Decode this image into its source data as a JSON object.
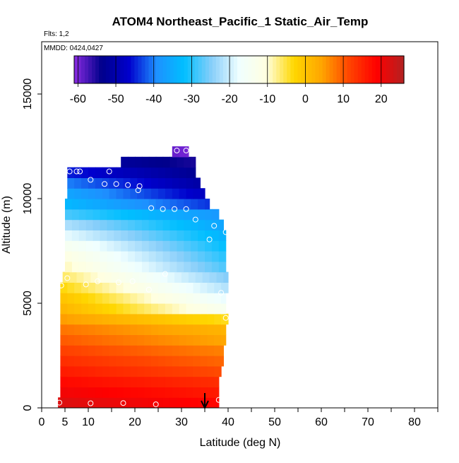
{
  "title": "ATOM4 Northeast_Pacific_1 Static_Air_Temp",
  "flights_text": "Flts: 1,2",
  "dates_text": "MMDD: 0424,0427",
  "chart_data": {
    "type": "heatmap",
    "xlabel": "Latitude (deg N)",
    "ylabel": "Altitude (m)",
    "xlim": [
      0,
      85
    ],
    "ylim": [
      0,
      17500
    ],
    "x_ticks": [
      0,
      5,
      10,
      20,
      30,
      40,
      50,
      60,
      70,
      80
    ],
    "y_ticks": [
      0,
      5000,
      10000,
      15000
    ],
    "colorbar": {
      "range": [
        -61,
        26
      ],
      "ticks": [
        -60,
        -50,
        -40,
        -30,
        -20,
        -10,
        0,
        10,
        20
      ],
      "colors": [
        "#8a2be2",
        "#00008b",
        "#0000cd",
        "#1e90ff",
        "#00bfff",
        "#87cefa",
        "#f0ffff",
        "#ffffe0",
        "#ffd700",
        "#ffa500",
        "#ff4500",
        "#ff0000",
        "#b22222"
      ]
    },
    "arrow_latitude": 35,
    "bins": [
      {
        "alt_min": 0,
        "alt_max": 500,
        "lat_min": 3.5,
        "lat_max": 38,
        "t_left": 22,
        "t_right": 18
      },
      {
        "alt_min": 500,
        "alt_max": 1000,
        "lat_min": 4,
        "lat_max": 38,
        "t_left": 20,
        "t_right": 16
      },
      {
        "alt_min": 1000,
        "alt_max": 1500,
        "lat_min": 4,
        "lat_max": 38,
        "t_left": 18,
        "t_right": 14
      },
      {
        "alt_min": 1500,
        "alt_max": 2000,
        "lat_min": 4,
        "lat_max": 38.5,
        "t_left": 16,
        "t_right": 11
      },
      {
        "alt_min": 2000,
        "alt_max": 2500,
        "lat_min": 4,
        "lat_max": 39,
        "t_left": 14,
        "t_right": 9
      },
      {
        "alt_min": 2500,
        "alt_max": 3000,
        "lat_min": 4,
        "lat_max": 39,
        "t_left": 12,
        "t_right": 7
      },
      {
        "alt_min": 3000,
        "alt_max": 3500,
        "lat_min": 4,
        "lat_max": 39.5,
        "t_left": 10,
        "t_right": 4
      },
      {
        "alt_min": 3500,
        "alt_max": 4000,
        "lat_min": 4,
        "lat_max": 39.5,
        "t_left": 8,
        "t_right": 2
      },
      {
        "alt_min": 4000,
        "alt_max": 4500,
        "lat_min": 4,
        "lat_max": 40,
        "t_left": 5,
        "t_right": -4
      },
      {
        "alt_min": 4500,
        "alt_max": 5000,
        "lat_min": 4,
        "lat_max": 39.5,
        "t_left": 2,
        "t_right": -14
      },
      {
        "alt_min": 5000,
        "alt_max": 5500,
        "lat_min": 4,
        "lat_max": 39.5,
        "t_left": 0,
        "t_right": -18
      },
      {
        "alt_min": 5500,
        "alt_max": 6000,
        "lat_min": 4,
        "lat_max": 40,
        "t_left": -3,
        "t_right": -22
      },
      {
        "alt_min": 6000,
        "alt_max": 6500,
        "lat_min": 4.5,
        "lat_max": 40,
        "t_left": -6,
        "t_right": -25
      },
      {
        "alt_min": 6500,
        "alt_max": 7000,
        "lat_min": 5,
        "lat_max": 39.5,
        "t_left": -9,
        "t_right": -28
      },
      {
        "alt_min": 7000,
        "alt_max": 7500,
        "lat_min": 5,
        "lat_max": 39.5,
        "t_left": -11,
        "t_right": -30
      },
      {
        "alt_min": 7500,
        "alt_max": 8000,
        "lat_min": 5,
        "lat_max": 39.5,
        "t_left": -14,
        "t_right": -32
      },
      {
        "alt_min": 8000,
        "alt_max": 8500,
        "lat_min": 5,
        "lat_max": 39.5,
        "t_left": -18,
        "t_right": -34
      },
      {
        "alt_min": 8500,
        "alt_max": 9000,
        "lat_min": 5,
        "lat_max": 39,
        "t_left": -22,
        "t_right": -36
      },
      {
        "alt_min": 9000,
        "alt_max": 9500,
        "lat_min": 5,
        "lat_max": 38,
        "t_left": -28,
        "t_right": -38
      },
      {
        "alt_min": 9500,
        "alt_max": 10000,
        "lat_min": 5,
        "lat_max": 36,
        "t_left": -33,
        "t_right": -44
      },
      {
        "alt_min": 10000,
        "alt_max": 10500,
        "lat_min": 5.5,
        "lat_max": 35,
        "t_left": -36,
        "t_right": -48
      },
      {
        "alt_min": 10500,
        "alt_max": 11000,
        "lat_min": 5.5,
        "lat_max": 34,
        "t_left": -40,
        "t_right": -51
      },
      {
        "alt_min": 11000,
        "alt_max": 11500,
        "lat_min": 5.5,
        "lat_max": 33,
        "t_left": -45,
        "t_right": -53
      },
      {
        "alt_min": 11500,
        "alt_max": 12000,
        "lat_min": 17,
        "lat_max": 33,
        "t_left": -52,
        "t_right": -55
      },
      {
        "alt_min": 12000,
        "alt_max": 12500,
        "lat_min": 28,
        "lat_max": 31.5,
        "t_left": -59,
        "t_right": -60
      }
    ],
    "points": [
      {
        "lat": 3.8,
        "alt": 250
      },
      {
        "lat": 10.5,
        "alt": 220
      },
      {
        "lat": 17.5,
        "alt": 230
      },
      {
        "lat": 24.5,
        "alt": 170
      },
      {
        "lat": 38,
        "alt": 380
      },
      {
        "lat": 4.2,
        "alt": 5850
      },
      {
        "lat": 5.5,
        "alt": 6200
      },
      {
        "lat": 9.5,
        "alt": 5900
      },
      {
        "lat": 12,
        "alt": 6050
      },
      {
        "lat": 16.5,
        "alt": 6000
      },
      {
        "lat": 19.5,
        "alt": 6050
      },
      {
        "lat": 23,
        "alt": 5650
      },
      {
        "lat": 26.5,
        "alt": 6400
      },
      {
        "lat": 38.5,
        "alt": 5500
      },
      {
        "lat": 39.5,
        "alt": 4300
      },
      {
        "lat": 6,
        "alt": 11300
      },
      {
        "lat": 7.5,
        "alt": 11300
      },
      {
        "lat": 8.2,
        "alt": 11300
      },
      {
        "lat": 14.5,
        "alt": 11300
      },
      {
        "lat": 10.5,
        "alt": 10900
      },
      {
        "lat": 13.5,
        "alt": 10700
      },
      {
        "lat": 16,
        "alt": 10700
      },
      {
        "lat": 18.5,
        "alt": 10650
      },
      {
        "lat": 21,
        "alt": 10600
      },
      {
        "lat": 20.7,
        "alt": 10400
      },
      {
        "lat": 23.5,
        "alt": 9550
      },
      {
        "lat": 26,
        "alt": 9500
      },
      {
        "lat": 28.5,
        "alt": 9500
      },
      {
        "lat": 31,
        "alt": 9500
      },
      {
        "lat": 33,
        "alt": 9000
      },
      {
        "lat": 37,
        "alt": 8700
      },
      {
        "lat": 39.5,
        "alt": 8400
      },
      {
        "lat": 36,
        "alt": 8050
      },
      {
        "lat": 29,
        "alt": 12300
      },
      {
        "lat": 31,
        "alt": 12300
      }
    ]
  }
}
